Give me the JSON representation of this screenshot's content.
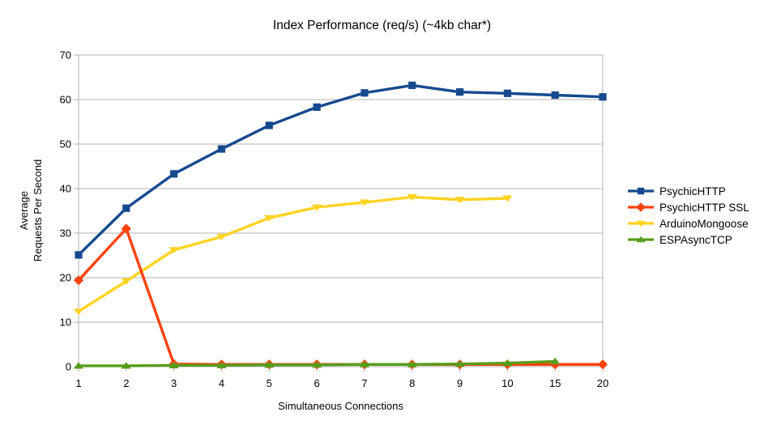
{
  "chart_data": {
    "type": "line",
    "title": "Index Performance (req/s) (~4kb char*)",
    "xlabel": "Simultaneous Connections",
    "ylabel": "Average Requests Per Second",
    "ylabel_lines": [
      "Average",
      "Requests Per Second"
    ],
    "ylim": [
      0,
      70
    ],
    "yticks": [
      0,
      10,
      20,
      30,
      40,
      50,
      60,
      70
    ],
    "grid": "horizontal",
    "legend_position": "right",
    "categories": [
      1,
      2,
      3,
      4,
      5,
      6,
      7,
      8,
      9,
      10,
      15,
      20
    ],
    "series": [
      {
        "name": "PsychicHTTP",
        "color": "#164a8f",
        "marker": "square",
        "values": [
          25.1,
          35.6,
          43.3,
          48.9,
          54.2,
          58.3,
          61.5,
          63.2,
          61.7,
          61.4,
          61.0,
          60.6
        ]
      },
      {
        "name": "PsychicHTTP SSL",
        "color": "#ff420e",
        "marker": "diamond",
        "values": [
          19.4,
          31.0,
          0.6,
          0.5,
          0.5,
          0.5,
          0.5,
          0.5,
          0.5,
          0.5,
          0.5,
          0.5
        ]
      },
      {
        "name": "ArduinoMongoose",
        "color": "#ffd320",
        "marker": "triangle-down",
        "values": [
          12.4,
          19.2,
          26.2,
          29.2,
          33.4,
          35.8,
          36.9,
          38.1,
          37.5,
          37.8,
          null,
          null
        ]
      },
      {
        "name": "ESPAsyncTCP",
        "color": "#579d1c",
        "marker": "triangle-up",
        "values": [
          0.2,
          0.2,
          0.3,
          0.3,
          0.4,
          0.4,
          0.5,
          0.5,
          0.6,
          0.8,
          1.2,
          null
        ]
      }
    ],
    "colors": {
      "grid": "#b3b3b3",
      "border": "#b3b3b3",
      "text": "#000000",
      "background": "#ffffff"
    }
  }
}
